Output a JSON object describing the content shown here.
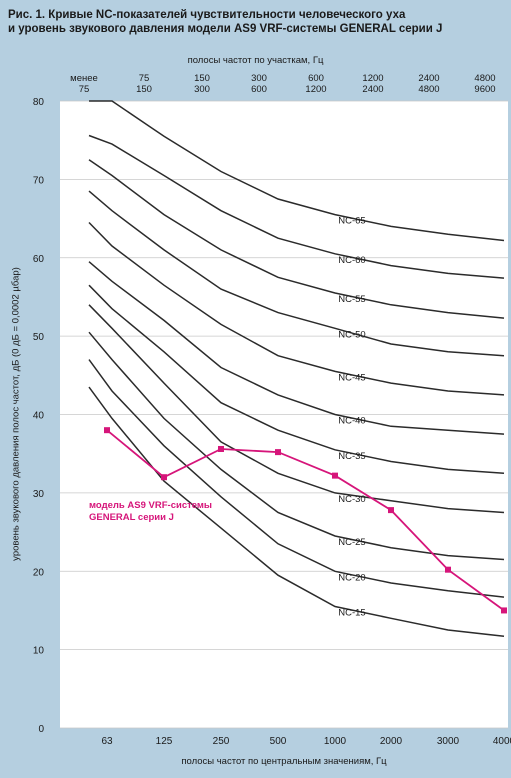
{
  "title_line1": "Рис. 1. Кривые NC-показателей чувствительности человеческого уха",
  "title_line2": "и уровень звукового давления модели AS9 VRF-системы GENERAL серии J",
  "top_axis_label": "полосы частот по участкам, Гц",
  "top_ticks": [
    {
      "a": "менее",
      "b": "75"
    },
    {
      "a": "75",
      "b": "150"
    },
    {
      "a": "150",
      "b": "300"
    },
    {
      "a": "300",
      "b": "600"
    },
    {
      "a": "600",
      "b": "1200"
    },
    {
      "a": "1200",
      "b": "2400"
    },
    {
      "a": "2400",
      "b": "4800"
    },
    {
      "a": "4800",
      "b": "9600"
    }
  ],
  "colors": {
    "background": "#b5cfe0",
    "plot": "#ffffff",
    "nc_curve": "#2b2b2b",
    "model_series": "#d6157a"
  },
  "chart_data": {
    "type": "line",
    "title": "Рис. 1. Кривые NC-показателей чувствительности человеческого уха и уровень звукового давления модели AS9 VRF-системы GENERAL серии J",
    "xlabel": "полосы частот по центральным значениям, Гц",
    "ylabel": "уровень звукового давления полос частот, дБ (0 дБ = 0,0002 µбар)",
    "categories": [
      "63",
      "125",
      "250",
      "500",
      "1000",
      "2000",
      "3000",
      "4000"
    ],
    "yticks": [
      "0",
      "10",
      "20",
      "30",
      "40",
      "50",
      "60",
      "70",
      "80"
    ],
    "ylim": [
      0,
      80
    ],
    "grid": "horizontal",
    "nc_curves": [
      {
        "name": "NC-65",
        "values": [
          80,
          75.5,
          71,
          67.5,
          65.5,
          64,
          63,
          62.2
        ],
        "start": [
          76.8,
          80
        ]
      },
      {
        "name": "NC-60",
        "values": [
          74.5,
          70.5,
          66,
          62.5,
          60.5,
          59,
          58,
          57.4
        ],
        "start": [
          72.5,
          75.6
        ]
      },
      {
        "name": "NC-55",
        "values": [
          70.5,
          65.5,
          61,
          57.5,
          55.5,
          54,
          53,
          52.3
        ],
        "start": [
          68.5,
          72.5
        ]
      },
      {
        "name": "NC-50",
        "values": [
          66,
          61,
          56,
          53,
          51,
          49,
          48,
          47.5
        ],
        "start": [
          63.5,
          68.5
        ]
      },
      {
        "name": "NC-45",
        "values": [
          61.5,
          56.5,
          51.5,
          47.5,
          45.5,
          44,
          43,
          42.5
        ],
        "start": [
          59.5,
          64.5
        ]
      },
      {
        "name": "NC-40",
        "values": [
          57,
          52,
          46,
          42.5,
          40,
          38.5,
          38,
          37.5
        ],
        "start": [
          55.5,
          59.5
        ]
      },
      {
        "name": "NC-35",
        "values": [
          53.5,
          48,
          41.5,
          38,
          35.5,
          34,
          33,
          32.5
        ],
        "start": [
          51,
          56.5
        ]
      },
      {
        "name": "NC-30",
        "values": [
          51,
          44,
          36.5,
          32.5,
          30,
          29,
          28,
          27.5
        ],
        "start": [
          47.5,
          54
        ]
      },
      {
        "name": "NC-25",
        "values": [
          47,
          39.5,
          33,
          27.5,
          24.5,
          23,
          22,
          21.5
        ],
        "start": [
          44,
          50.5
        ]
      },
      {
        "name": "NC-20",
        "values": [
          43,
          36,
          29.5,
          23.5,
          20,
          18.5,
          17.5,
          16.7
        ],
        "start": [
          40.2,
          47
        ]
      },
      {
        "name": "NC-15",
        "values": [
          39.5,
          31.5,
          25.5,
          19.5,
          15.5,
          14,
          12.5,
          11.7
        ],
        "start": [
          36.5,
          43.5
        ]
      }
    ],
    "series": [
      {
        "name": "модель AS9 VRF-системы GENERAL серии J",
        "values": [
          38,
          32,
          35.6,
          35.2,
          32.2,
          27.8,
          20.2,
          15
        ]
      }
    ]
  }
}
